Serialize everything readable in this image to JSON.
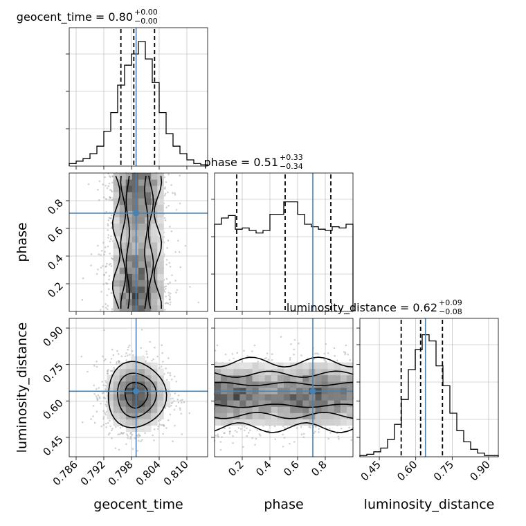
{
  "colors": {
    "truth": "#4682b4",
    "line": "#000000",
    "grid": "#b0b0b0",
    "scatter": "#9a9a9a"
  },
  "chart_data": {
    "type": "corner",
    "parameters": [
      {
        "name": "geocent_time",
        "axis_label": "geocent_time",
        "range": [
          0.7845,
          0.8145
        ],
        "ticks": [
          0.786,
          0.792,
          0.798,
          0.804,
          0.81
        ],
        "tick_labels": [
          "0.786",
          "0.792",
          "0.798",
          "0.804",
          "0.810"
        ],
        "truth": 0.799,
        "quantiles": [
          0.7957,
          0.7985,
          0.803
        ],
        "title_main": "geocent_time = 0.80",
        "title_sup": "+0.00",
        "title_sub": "−0.00",
        "hist": [
          0.02,
          0.04,
          0.06,
          0.1,
          0.16,
          0.28,
          0.43,
          0.65,
          0.81,
          0.9,
          1.0,
          0.86,
          0.67,
          0.43,
          0.26,
          0.16,
          0.1,
          0.05,
          0.02,
          0.01
        ]
      },
      {
        "name": "phase",
        "axis_label": "phase",
        "range": [
          0.0,
          1.0
        ],
        "ticks": [
          0.2,
          0.4,
          0.6,
          0.8
        ],
        "tick_labels": [
          "0.2",
          "0.4",
          "0.6",
          "0.8"
        ],
        "truth": 0.71,
        "quantiles": [
          0.16,
          0.51,
          0.84
        ],
        "title_main": "phase = 0.51",
        "title_sup": "+0.33",
        "title_sub": "−0.34",
        "hist": [
          0.7,
          0.75,
          0.77,
          0.66,
          0.67,
          0.65,
          0.63,
          0.65,
          0.78,
          0.78,
          0.88,
          0.88,
          0.78,
          0.7,
          0.68,
          0.66,
          0.65,
          0.68,
          0.67,
          0.7
        ]
      },
      {
        "name": "luminosity_distance",
        "axis_label": "luminosity_distance",
        "range": [
          0.37,
          0.94
        ],
        "ticks": [
          0.45,
          0.6,
          0.75,
          0.9
        ],
        "tick_labels": [
          "0.45",
          "0.60",
          "0.75",
          "0.90"
        ],
        "truth": 0.64,
        "quantiles": [
          0.54,
          0.62,
          0.71
        ],
        "title_main": "luminosity_distance = 0.62",
        "title_sup": "+0.09",
        "title_sub": "−0.08",
        "hist": [
          0.01,
          0.02,
          0.04,
          0.07,
          0.14,
          0.26,
          0.46,
          0.7,
          0.86,
          0.98,
          0.93,
          0.73,
          0.57,
          0.35,
          0.21,
          0.12,
          0.06,
          0.03,
          0.01,
          0.01
        ]
      }
    ],
    "joint": [
      {
        "x": "geocent_time",
        "y": "phase",
        "x_range": [
          0.7845,
          0.8145
        ],
        "y_range": [
          0.0,
          1.0
        ],
        "x_center": 0.7992,
        "x_sigma": 0.0035,
        "y_mode": "uniform",
        "contour_levels": [
          {
            "xw": 0.0045,
            "kind": "band"
          },
          {
            "xw": 0.003,
            "kind": "band"
          },
          {
            "xw": 0.002,
            "kind": "band"
          }
        ]
      },
      {
        "x": "geocent_time",
        "y": "luminosity_distance",
        "x_range": [
          0.7845,
          0.8145
        ],
        "y_range": [
          0.37,
          0.94
        ],
        "x_center": 0.799,
        "x_sigma": 0.0035,
        "y_center": 0.625,
        "y_sigma": 0.075,
        "contour_radii": [
          0.7,
          1.2,
          1.8
        ]
      },
      {
        "x": "phase",
        "y": "luminosity_distance",
        "x_range": [
          0.0,
          1.0
        ],
        "y_range": [
          0.37,
          0.94
        ],
        "y_center": 0.625,
        "y_sigma": 0.075,
        "x_mode": "uniform",
        "contour_halfwidths": [
          0.045,
          0.085,
          0.135
        ]
      }
    ]
  }
}
